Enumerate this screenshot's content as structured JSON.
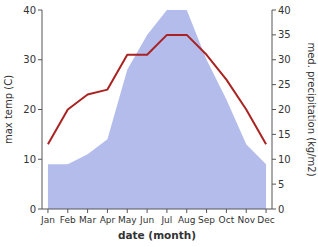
{
  "chart_data": {
    "type": "line",
    "categories": [
      "Jan",
      "Feb",
      "Mar",
      "Apr",
      "May",
      "Jun",
      "Jul",
      "Aug",
      "Sep",
      "Oct",
      "Nov",
      "Dec"
    ],
    "series": [
      {
        "type": "area",
        "color": "#b3bceb",
        "axis": "y2",
        "values": [
          9,
          9,
          11,
          14,
          28,
          35,
          40,
          40,
          30,
          22,
          13,
          9
        ]
      },
      {
        "type": "line",
        "color": "#aa2222",
        "values": [
          13,
          20,
          23,
          24,
          31,
          31,
          35,
          35,
          31,
          26,
          20,
          13
        ]
      }
    ],
    "ylim": [
      0,
      40
    ],
    "yticks": [
      0,
      10,
      20,
      30,
      40
    ],
    "y2lim": [
      0,
      40
    ],
    "y2ticks": [
      0,
      5,
      10,
      15,
      20,
      25,
      30,
      35,
      40
    ],
    "xlabel": "date (month)",
    "ylabel": "max temp (C)",
    "y2label": "med. precipitation (kg/m2)",
    "grid": false
  }
}
